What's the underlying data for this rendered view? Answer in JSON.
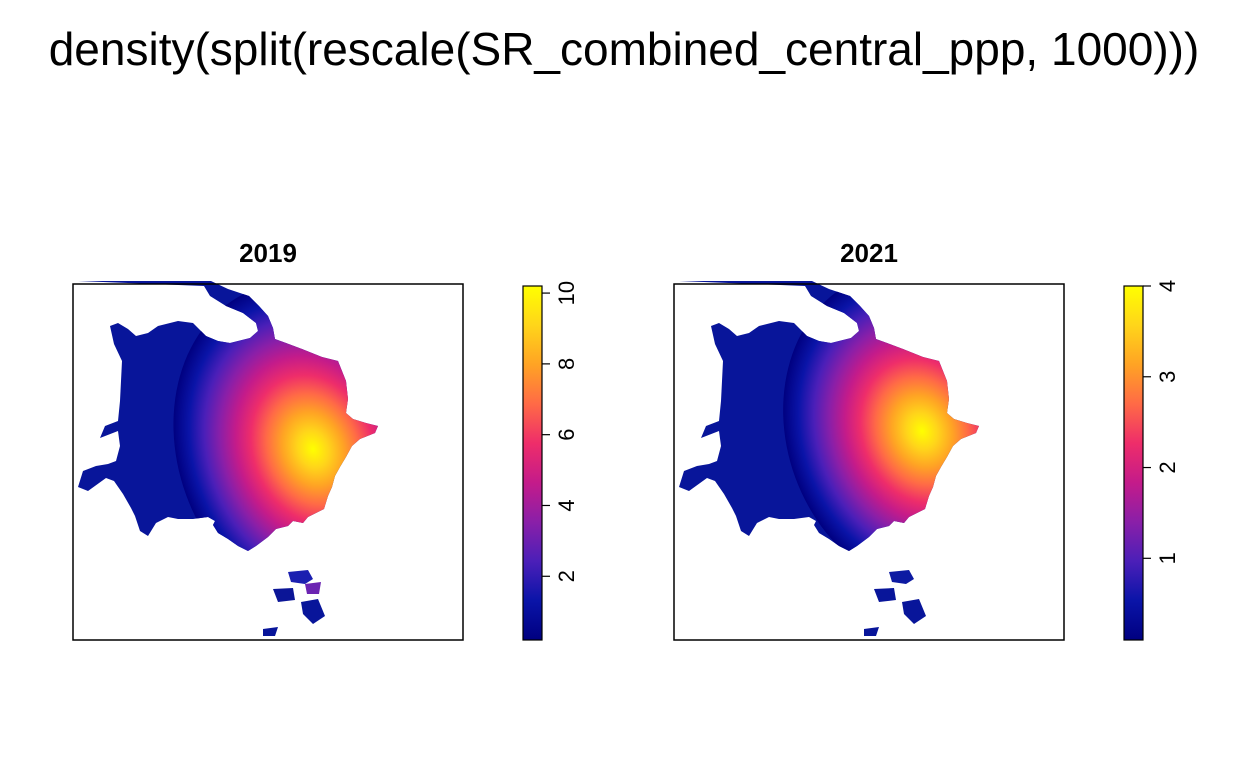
{
  "figure": {
    "title": "density(split(rescale(SR_combined_central_ppp, 1000)))"
  },
  "colors": {
    "scale": [
      "#000080",
      "#0a14a8",
      "#4b1fb8",
      "#8a1fa8",
      "#c41b8a",
      "#ee2d6a",
      "#ff6a46",
      "#ffa324",
      "#ffd51a",
      "#ffff00"
    ]
  },
  "chart_data": [
    {
      "type": "heatmap",
      "title": "2019",
      "legend_ticks": [
        2,
        4,
        6,
        8,
        10
      ],
      "value_range": [
        0.2,
        10.2
      ],
      "peak": 10.2,
      "legend": "right"
    },
    {
      "type": "heatmap",
      "title": "2021",
      "legend_ticks": [
        1,
        2,
        3,
        4
      ],
      "value_range": [
        0.1,
        4.0
      ],
      "peak": 4.0,
      "legend": "right"
    }
  ]
}
